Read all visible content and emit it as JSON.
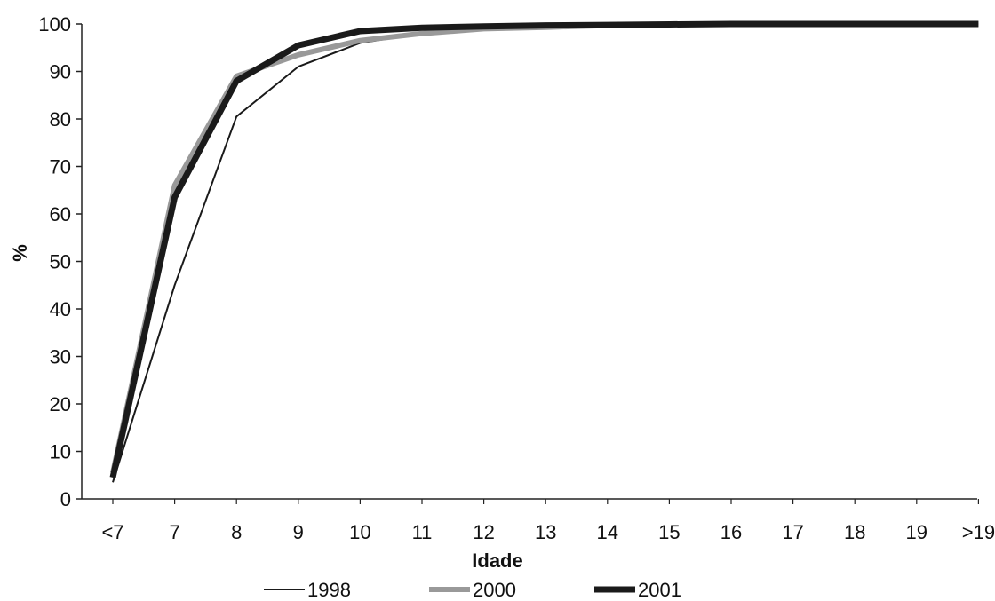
{
  "chart_data": {
    "type": "line",
    "title": "",
    "xlabel": "Idade",
    "ylabel": "%",
    "ylim": [
      0,
      100
    ],
    "yticks": [
      0,
      10,
      20,
      30,
      40,
      50,
      60,
      70,
      80,
      90,
      100
    ],
    "grid": false,
    "legend_position": "bottom",
    "categories": [
      "<7",
      "7",
      "8",
      "9",
      "10",
      "11",
      "12",
      "13",
      "14",
      "15",
      "16",
      "17",
      "18",
      "19",
      ">19"
    ],
    "series": [
      {
        "name": "1998",
        "color": "#1a1a1a",
        "style": "thin",
        "values": [
          3.5,
          45,
          80.5,
          91,
          96,
          98,
          99,
          99.5,
          99.8,
          99.9,
          100,
          100,
          100,
          100,
          100
        ]
      },
      {
        "name": "2000",
        "color": "#999999",
        "style": "medium",
        "values": [
          5.5,
          66,
          89,
          93.5,
          96.5,
          98,
          99,
          99.3,
          99.7,
          99.9,
          100,
          100,
          100,
          100,
          100
        ]
      },
      {
        "name": "2001",
        "color": "#1a1a1a",
        "style": "thick",
        "values": [
          4.5,
          63.5,
          88,
          95.5,
          98.5,
          99.2,
          99.5,
          99.7,
          99.8,
          99.9,
          100,
          100,
          100,
          100,
          100
        ]
      }
    ]
  }
}
